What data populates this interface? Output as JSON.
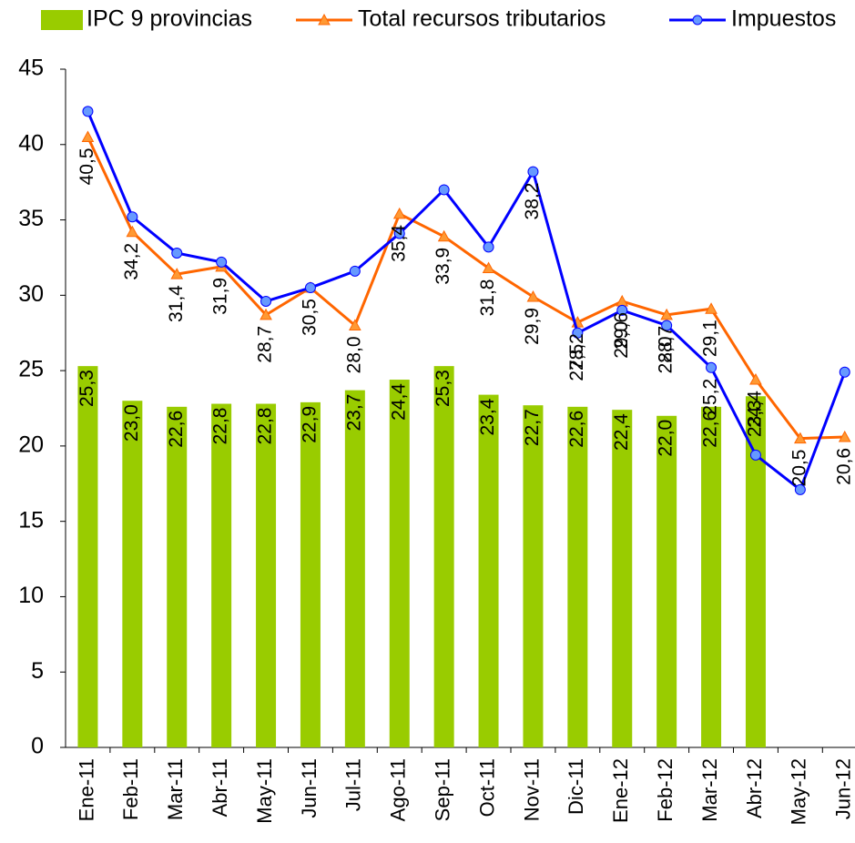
{
  "chart_data": {
    "type": "bar-line",
    "categories": [
      "Ene-11",
      "Feb-11",
      "Mar-11",
      "Abr-11",
      "May-11",
      "Jun-11",
      "Jul-11",
      "Ago-11",
      "Sep-11",
      "Oct-11",
      "Nov-11",
      "Dic-11",
      "Ene-12",
      "Feb-12",
      "Mar-12",
      "Abr-12",
      "May-12",
      "Jun-12"
    ],
    "series": [
      {
        "name": "IPC 9 provincias",
        "kind": "bar",
        "color": "#99cc00",
        "values": [
          25.3,
          23.0,
          22.6,
          22.8,
          22.8,
          22.9,
          23.7,
          24.4,
          25.3,
          23.4,
          22.7,
          22.6,
          22.4,
          22.0,
          22.6,
          23.3,
          null,
          null
        ],
        "value_labels": [
          "25,3",
          "23,0",
          "22,6",
          "22,8",
          "22,8",
          "22,9",
          "23,7",
          "24,4",
          "25,3",
          "23,4",
          "22,7",
          "22,6",
          "22,4",
          "22,0",
          "22,6",
          "23,3",
          null,
          null
        ]
      },
      {
        "name": "Total recursos tributarios",
        "kind": "line",
        "marker": "triangle",
        "color": "#ff6600",
        "marker_color": "#ff9933",
        "values": [
          40.5,
          34.2,
          31.4,
          31.9,
          28.7,
          30.5,
          28.0,
          35.4,
          33.9,
          31.8,
          29.9,
          28.2,
          29.6,
          28.7,
          29.1,
          24.4,
          20.5,
          20.6
        ],
        "value_labels": [
          "40,5",
          "34,2",
          "31,4",
          "31,9",
          "28,7",
          "30,5",
          "28,0",
          "35,4",
          "33,9",
          "31,8",
          "29,9",
          "28,2",
          "29,6",
          "28,7",
          "29,1",
          "24,4",
          "20,5",
          "20,6"
        ]
      },
      {
        "name": "Impuestos",
        "kind": "line",
        "marker": "circle",
        "color": "#0000ff",
        "marker_color": "#6699ff",
        "values": [
          42.2,
          35.2,
          32.8,
          32.2,
          29.6,
          30.5,
          31.6,
          34.1,
          37.0,
          33.2,
          38.2,
          27.5,
          29.0,
          28.0,
          25.2,
          19.4,
          17.1,
          24.9
        ],
        "value_labels": [
          null,
          null,
          null,
          null,
          null,
          null,
          null,
          null,
          null,
          null,
          "38,2",
          "27,5",
          "29,0",
          "28,0",
          "25,2",
          null,
          null,
          null
        ]
      }
    ],
    "ylim": [
      0,
      45
    ],
    "yticks": [
      0,
      5,
      10,
      15,
      20,
      25,
      30,
      35,
      40,
      45
    ],
    "grid": false
  }
}
